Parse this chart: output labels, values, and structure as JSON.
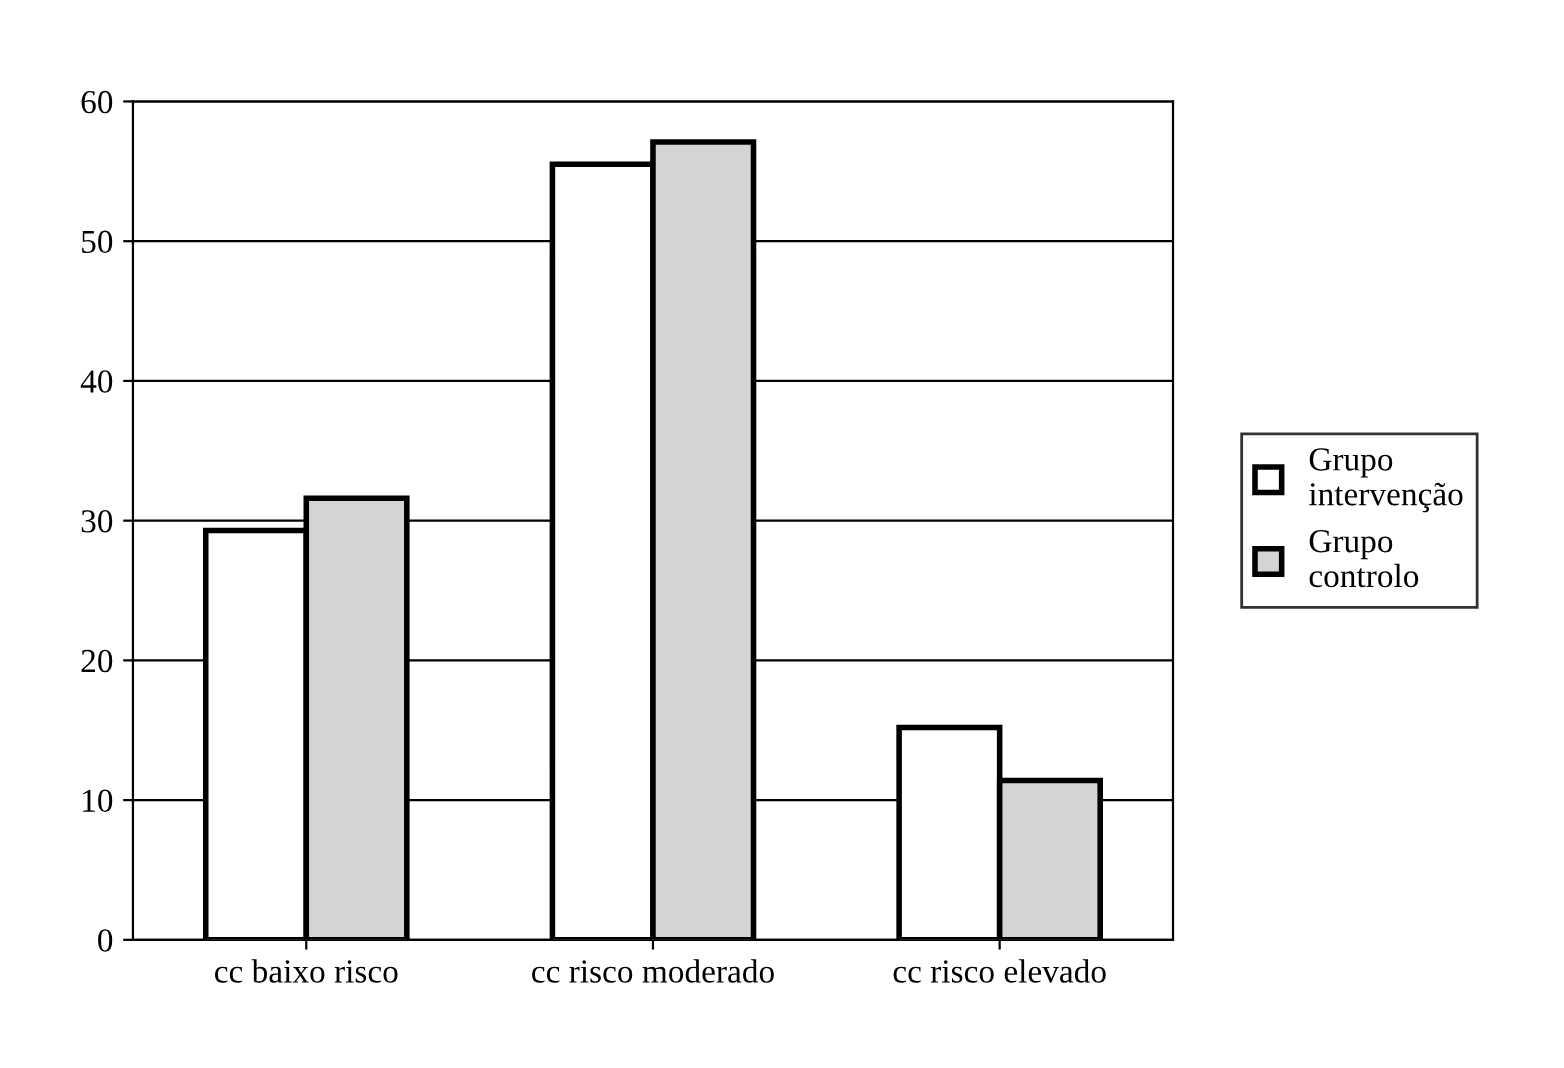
{
  "chart_data": {
    "type": "bar",
    "categories": [
      "cc baixo risco",
      "cc risco moderado",
      "cc risco elevado"
    ],
    "series": [
      {
        "name": "Grupo\nintervenção",
        "color": "#ffffff",
        "values": [
          29.3,
          55.5,
          15.2
        ]
      },
      {
        "name": "Grupo\ncontrolo",
        "color": "#d4d4d4",
        "values": [
          31.6,
          57.1,
          11.4
        ]
      }
    ],
    "ylim": [
      0,
      60
    ],
    "yticks": [
      0,
      10,
      20,
      30,
      40,
      50,
      60
    ],
    "grid": "y",
    "legend": "right"
  }
}
